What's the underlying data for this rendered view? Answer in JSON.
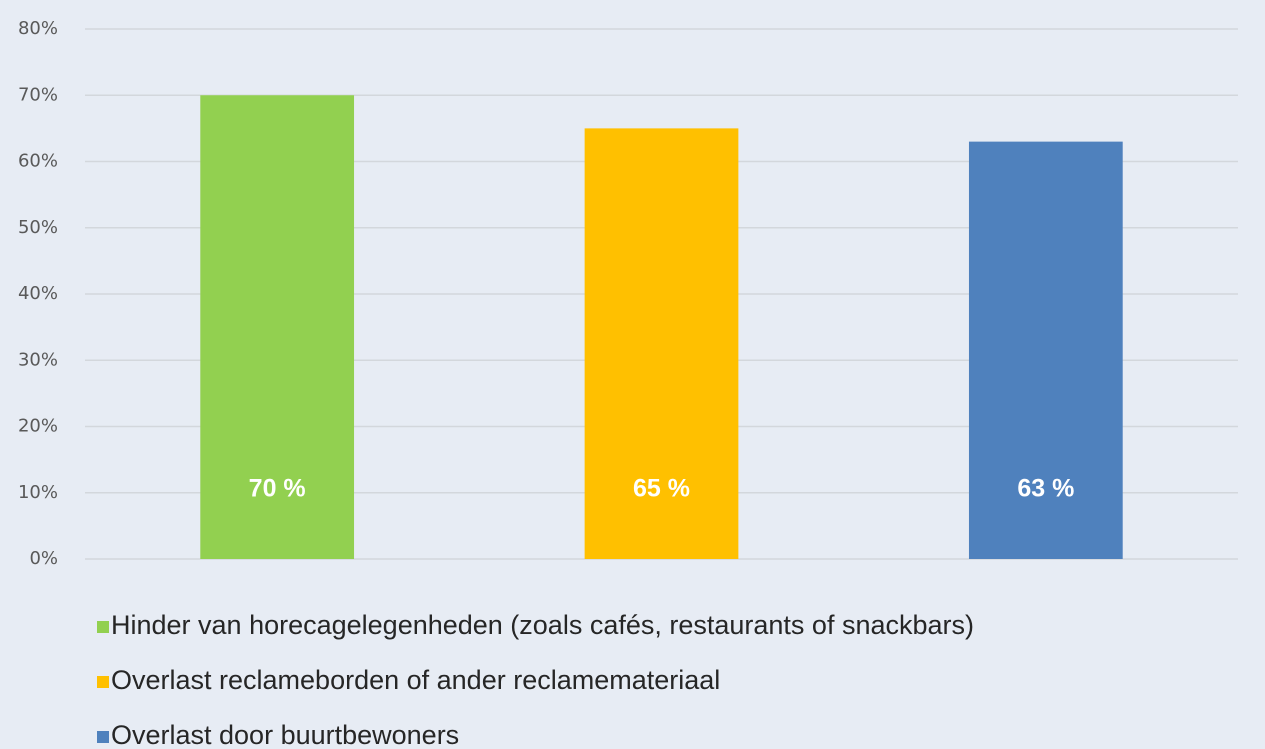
{
  "chart_data": {
    "type": "bar",
    "series": [
      {
        "name": "Hinder van horecagelegenheden (zoals cafés, restaurants of snackbars)",
        "color": "#92d050",
        "values": [
          70
        ],
        "value_labels": [
          "70 %"
        ]
      },
      {
        "name": "Overlast reclameborden of ander reclamemateriaal",
        "color": "#ffc000",
        "values": [
          65
        ],
        "value_labels": [
          "65 %"
        ]
      },
      {
        "name": "Overlast door buurtbewoners",
        "color": "#4f81bd",
        "values": [
          63
        ],
        "value_labels": [
          "63 %"
        ]
      }
    ],
    "ylim": [
      0,
      80
    ],
    "yticks": [
      {
        "value": 0,
        "label": "0%"
      },
      {
        "value": 10,
        "label": "10%"
      },
      {
        "value": 20,
        "label": "20%"
      },
      {
        "value": 30,
        "label": "30%"
      },
      {
        "value": 40,
        "label": "40%"
      },
      {
        "value": 50,
        "label": "50%"
      },
      {
        "value": 60,
        "label": "60%"
      },
      {
        "value": 70,
        "label": "70%"
      },
      {
        "value": 80,
        "label": "80%"
      }
    ],
    "grid": true,
    "legend": "bottom"
  }
}
